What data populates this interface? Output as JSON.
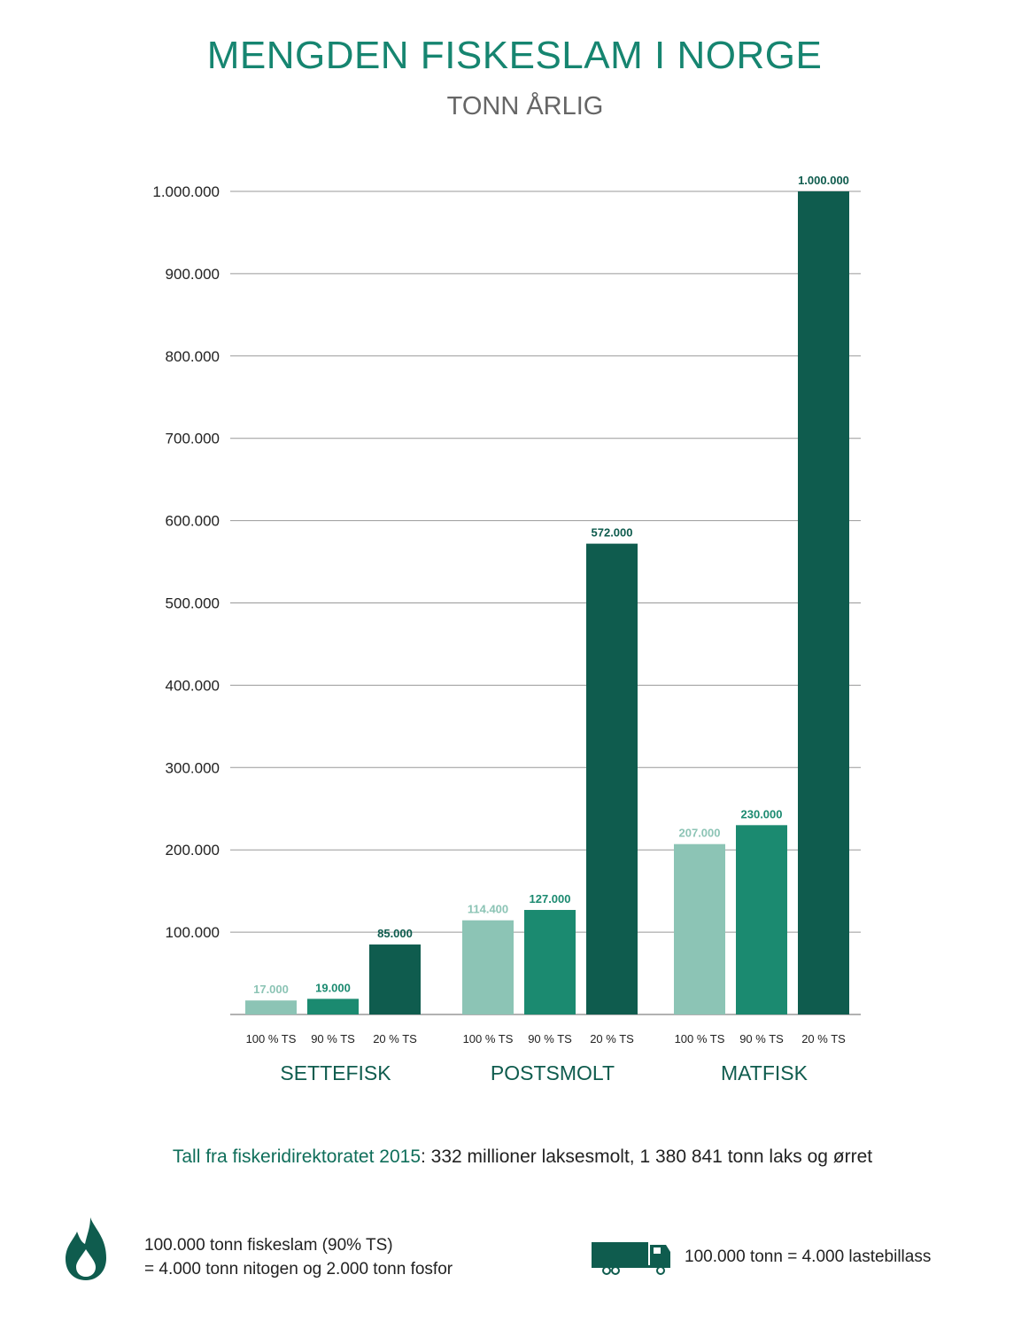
{
  "chart_data": {
    "type": "bar",
    "title": "MENGDEN FISKESLAM I NORGE",
    "subtitle": "TONN ÅRLIG",
    "xlabel": "",
    "ylabel": "",
    "ylim": [
      0,
      1000000
    ],
    "yticks": [
      "100.000",
      "200.000",
      "300.000",
      "400.000",
      "500.000",
      "600.000",
      "700.000",
      "800.000",
      "900.000",
      "1.000.000"
    ],
    "ytick_values": [
      100000,
      200000,
      300000,
      400000,
      500000,
      600000,
      700000,
      800000,
      900000,
      1000000
    ],
    "grid": true,
    "categories": [
      "SETTEFISK",
      "POSTSMOLT",
      "MATFISK"
    ],
    "series": [
      {
        "name": "100 % TS",
        "color": "#8cc4b5",
        "values": [
          17000,
          114400,
          207000
        ],
        "labels": [
          "17.000",
          "114.400",
          "207.000"
        ]
      },
      {
        "name": "90 % TS",
        "color": "#1b8a70",
        "values": [
          19000,
          127000,
          230000
        ],
        "labels": [
          "19.000",
          "127.000",
          "230.000"
        ]
      },
      {
        "name": "20 % TS",
        "color": "#0f5c4e",
        "values": [
          85000,
          572000,
          1000000
        ],
        "labels": [
          "85.000",
          "572.000",
          "1.000.000"
        ]
      }
    ]
  },
  "footer": {
    "source_highlight": "Tall fra fiskeridirektoratet 2015",
    "source_rest": ": 332 millioner laksesmolt, 1 380 841 tonn laks og ørret",
    "note1_line1": "100.000 tonn fiskeslam (90% TS)",
    "note1_line2": "= 4.000 tonn nitogen og 2.000 tonn fosfor",
    "note2": "100.000 tonn = 4.000 lastebillass",
    "icons": [
      "flame-icon",
      "truck-icon"
    ]
  }
}
